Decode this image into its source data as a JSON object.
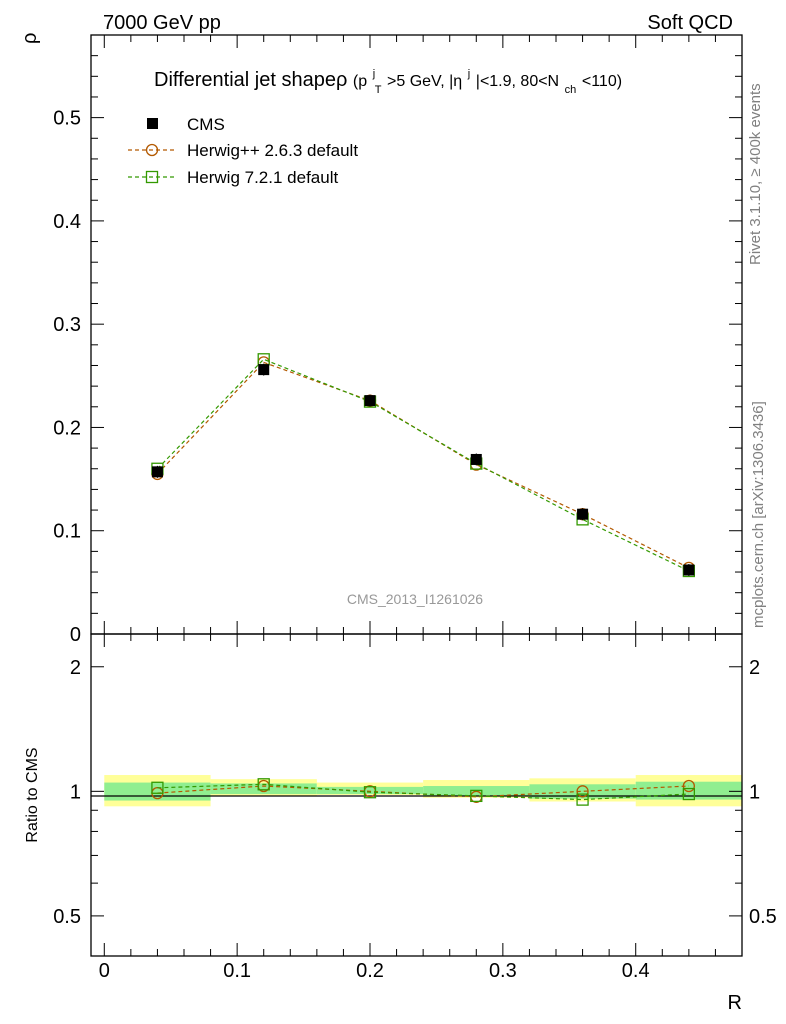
{
  "header": {
    "left": "7000 GeV pp",
    "right": "Soft QCD"
  },
  "side_labels": {
    "rivet": "Rivet 3.1.10, ≥ 400k events",
    "mcplots": "mcplots.cern.ch [arXiv:1306.3436]"
  },
  "colors": {
    "cms": "#000000",
    "herwig_old": "#b35900",
    "herwig_new": "#339900",
    "band_inner": "#90ee90",
    "band_outer": "#ffff99"
  },
  "chart_data": [
    {
      "type": "line",
      "panel": "main",
      "title": "Differential jet shapeρ",
      "title_cuts": {
        "open": "(p",
        "pt_sup": "j",
        "pt_sub": "T",
        "pt_rest": ">5 GeV, |η",
        "eta_sup": "j",
        "eta_rest": "|<1.9, 80<N",
        "nch_sub": "ch",
        "close": "<110)"
      },
      "ylabel": "ρ",
      "ylim": [
        0,
        0.58
      ],
      "yticks": [
        0,
        0.1,
        0.2,
        0.3,
        0.4,
        0.5
      ],
      "ytick_labels": [
        "0",
        "0.1",
        "0.2",
        "0.3",
        "0.4",
        "0.5"
      ],
      "xlim": [
        -0.01,
        0.48
      ],
      "watermark": "CMS_2013_I1261026",
      "legend_position": "top-left",
      "x": [
        0.04,
        0.12,
        0.2,
        0.28,
        0.36,
        0.44
      ],
      "x_bins": [
        [
          0.0,
          0.08
        ],
        [
          0.08,
          0.16
        ],
        [
          0.16,
          0.24
        ],
        [
          0.24,
          0.32
        ],
        [
          0.32,
          0.4
        ],
        [
          0.4,
          0.48
        ]
      ],
      "series": [
        {
          "name": "CMS",
          "marker": "filled-square",
          "values": [
            0.157,
            0.256,
            0.226,
            0.169,
            0.116,
            0.062
          ]
        },
        {
          "name": "Herwig++ 2.6.3 default",
          "marker": "open-circle",
          "values": [
            0.155,
            0.263,
            0.226,
            0.164,
            0.116,
            0.064
          ]
        },
        {
          "name": "Herwig 7.2.1 default",
          "marker": "open-square",
          "values": [
            0.16,
            0.266,
            0.225,
            0.165,
            0.111,
            0.061
          ]
        }
      ]
    },
    {
      "type": "line",
      "panel": "ratio",
      "ylabel": "Ratio to CMS",
      "xlabel": "R",
      "ylim": [
        0.4,
        2.4
      ],
      "yticks": [
        0.5,
        1,
        2
      ],
      "ytick_labels": [
        "0.5",
        "1",
        "2"
      ],
      "xlim": [
        -0.01,
        0.48
      ],
      "xticks": [
        0,
        0.1,
        0.2,
        0.3,
        0.4
      ],
      "xtick_labels": [
        "0",
        "0.1",
        "0.2",
        "0.3",
        "0.4"
      ],
      "x": [
        0.04,
        0.12,
        0.2,
        0.28,
        0.36,
        0.44
      ],
      "band_inner": [
        [
          0.95,
          1.05
        ],
        [
          0.985,
          1.045
        ],
        [
          0.985,
          1.025
        ],
        [
          0.975,
          1.03
        ],
        [
          0.96,
          1.04
        ],
        [
          0.955,
          1.055
        ]
      ],
      "band_outer": [
        [
          0.92,
          1.095
        ],
        [
          0.975,
          1.07
        ],
        [
          0.98,
          1.05
        ],
        [
          0.965,
          1.065
        ],
        [
          0.945,
          1.075
        ],
        [
          0.92,
          1.095
        ]
      ],
      "series": [
        {
          "name": "Herwig++ 2.6.3 default",
          "marker": "open-circle",
          "values": [
            0.99,
            1.03,
            1.0,
            0.97,
            1.0,
            1.03
          ]
        },
        {
          "name": "Herwig 7.2.1 default",
          "marker": "open-square",
          "values": [
            1.02,
            1.04,
            0.995,
            0.975,
            0.955,
            0.985
          ]
        }
      ]
    }
  ]
}
